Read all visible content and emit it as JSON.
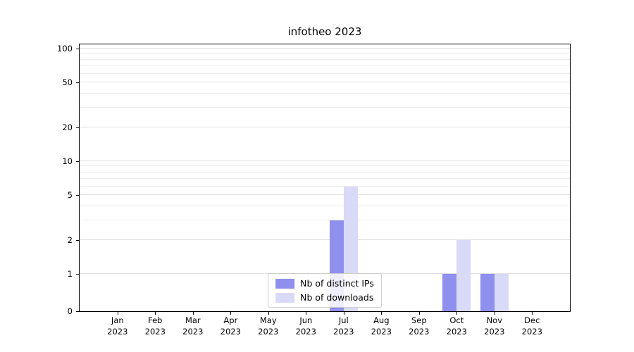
{
  "chart_data": {
    "type": "bar",
    "title": "infotheo 2023",
    "year": "2023",
    "categories": [
      "Jan",
      "Feb",
      "Mar",
      "Apr",
      "May",
      "Jun",
      "Jul",
      "Aug",
      "Sep",
      "Oct",
      "Nov",
      "Dec"
    ],
    "series": [
      {
        "name": "Nb of distinct IPs",
        "color": "#8f8fee",
        "values": [
          0,
          0,
          0,
          0,
          0,
          0,
          3,
          0,
          0,
          1,
          1,
          0
        ]
      },
      {
        "name": "Nb of downloads",
        "color": "#d9d9f8",
        "values": [
          0,
          0,
          0,
          0,
          0,
          0,
          6,
          0,
          0,
          2,
          1,
          0
        ]
      }
    ],
    "yticks": [
      0,
      1,
      2,
      5,
      10,
      20,
      50,
      100
    ],
    "grid_values": [
      1,
      2,
      3,
      4,
      5,
      6,
      7,
      8,
      9,
      10,
      20,
      30,
      40,
      50,
      60,
      70,
      80,
      90,
      100
    ],
    "scale": "symlog",
    "ylim": [
      0,
      110
    ],
    "xlabel": "",
    "ylabel": "",
    "legend_position": "lower center",
    "grid": "horizontal-minor"
  },
  "colors": {
    "grid_minor": "#ececec",
    "grid_major": "#e0e0e0",
    "spine": "#000000",
    "background": "#ffffff"
  }
}
